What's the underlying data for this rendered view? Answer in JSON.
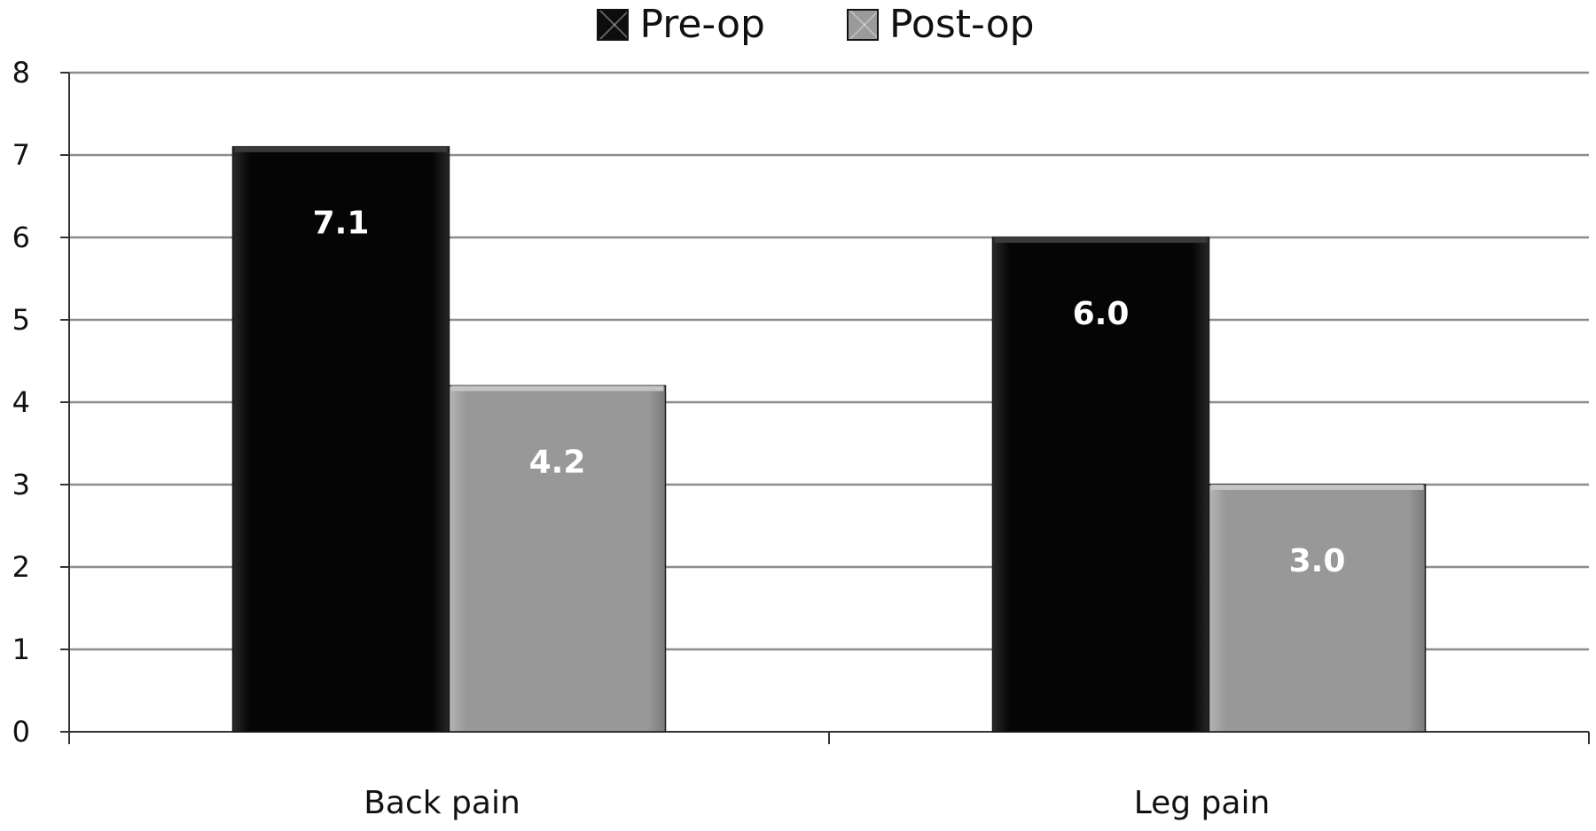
{
  "chart_data": {
    "type": "bar",
    "title": "",
    "xlabel": "",
    "ylabel": "",
    "categories": [
      "Back pain",
      "Leg pain"
    ],
    "series": [
      {
        "name": "Pre-op",
        "values": [
          7.1,
          6.0
        ],
        "color": "#0d0d0d",
        "data_labels": [
          "7.1",
          "6.0"
        ]
      },
      {
        "name": "Post-op",
        "values": [
          4.2,
          3.0
        ],
        "color": "#9a9a9a",
        "data_labels": [
          "4.2",
          "3.0"
        ]
      }
    ],
    "ylim": [
      0,
      8
    ],
    "y_ticks": [
      "0",
      "1",
      "2",
      "3",
      "4",
      "5",
      "6",
      "7",
      "8"
    ],
    "grid": true,
    "legend_position": "top-center"
  }
}
